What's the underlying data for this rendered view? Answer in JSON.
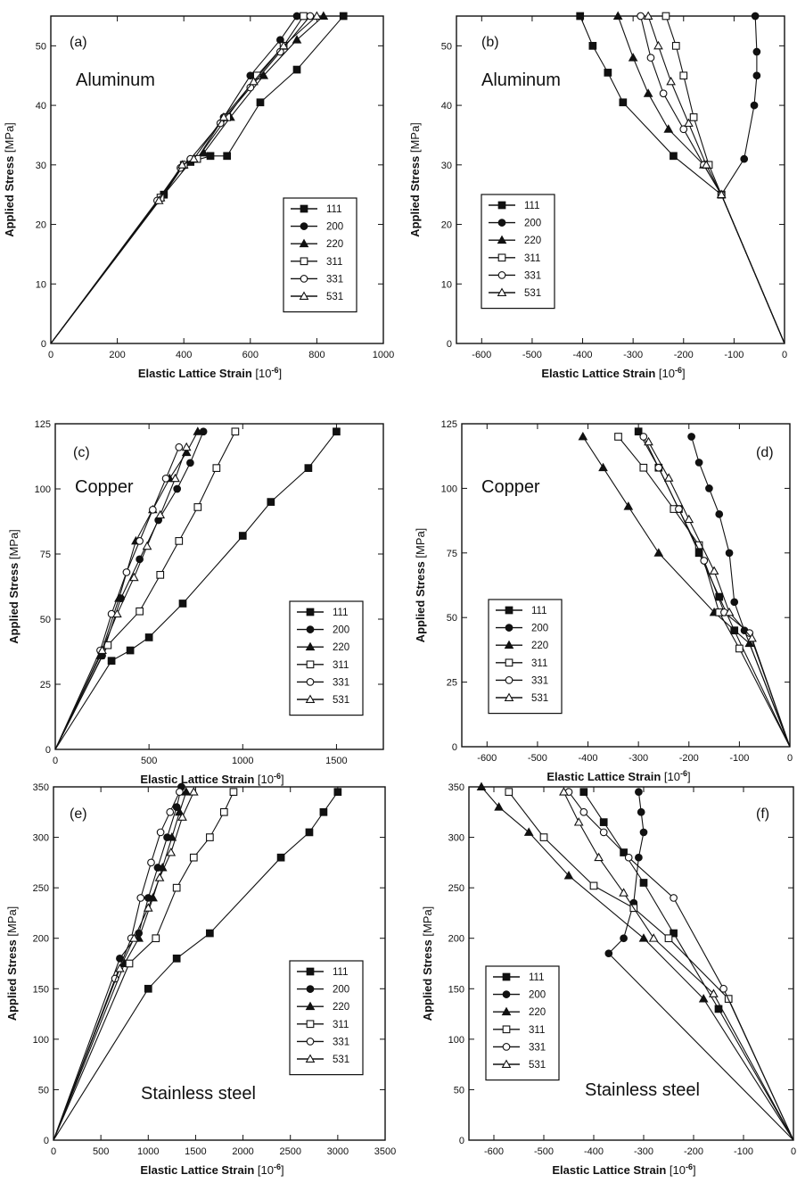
{
  "chart_data": [
    {
      "panel": "(a)",
      "material": "Aluminum",
      "type": "line",
      "xlabel": "Elastic Lattice Strain",
      "xunit": "[10-6]",
      "ylabel": "Applied Stress",
      "yunit": "[MPa]",
      "xlim": [
        0,
        1000
      ],
      "ylim": [
        0,
        55
      ],
      "xticks": [
        0,
        200,
        400,
        600,
        800,
        1000
      ],
      "yticks": [
        0,
        10,
        20,
        30,
        40,
        50
      ],
      "grid": false,
      "legend_position": "lower-right",
      "series": [
        {
          "name": "111",
          "marker": "square-filled",
          "x": [
            0,
            340,
            420,
            480,
            530,
            630,
            740,
            880
          ],
          "y": [
            0,
            25,
            30.5,
            31.5,
            31.5,
            40.5,
            46,
            55
          ]
        },
        {
          "name": "200",
          "marker": "circle-filled",
          "x": [
            0,
            340,
            400,
            440,
            520,
            600,
            690,
            740
          ],
          "y": [
            0,
            25,
            30,
            31,
            38,
            45,
            51,
            55
          ]
        },
        {
          "name": "220",
          "marker": "triangle-filled",
          "x": [
            0,
            330,
            400,
            460,
            540,
            640,
            740,
            820
          ],
          "y": [
            0,
            24.5,
            30,
            32,
            38,
            45,
            51,
            55
          ]
        },
        {
          "name": "311",
          "marker": "square-open",
          "x": [
            0,
            330,
            400,
            440,
            530,
            620,
            700,
            760
          ],
          "y": [
            0,
            24.5,
            30,
            31,
            38,
            45,
            50,
            55
          ]
        },
        {
          "name": "331",
          "marker": "circle-open",
          "x": [
            0,
            320,
            390,
            420,
            510,
            600,
            690,
            780
          ],
          "y": [
            0,
            24,
            29.5,
            31,
            37,
            43,
            49,
            55
          ]
        },
        {
          "name": "531",
          "marker": "triangle-open",
          "x": [
            0,
            325,
            395,
            430,
            520,
            610,
            700,
            800
          ],
          "y": [
            0,
            24,
            30,
            31,
            38,
            44,
            50,
            55
          ]
        }
      ]
    },
    {
      "panel": "(b)",
      "material": "Aluminum",
      "type": "line",
      "xlabel": "Elastic Lattice Strain",
      "xunit": "[10-6]",
      "ylabel": "Applied Stress",
      "yunit": "[MPa]",
      "xlim": [
        -650,
        0
      ],
      "ylim": [
        0,
        55
      ],
      "xticks": [
        -600,
        -500,
        -400,
        -300,
        -200,
        -100,
        0
      ],
      "yticks": [
        0,
        10,
        20,
        30,
        40,
        50
      ],
      "grid": false,
      "legend_position": "lower-left",
      "series": [
        {
          "name": "111",
          "marker": "square-filled",
          "x": [
            0,
            -125,
            -220,
            -320,
            -350,
            -380,
            -405
          ],
          "y": [
            0,
            25,
            31.5,
            40.5,
            45.5,
            50,
            55
          ]
        },
        {
          "name": "200",
          "marker": "circle-filled",
          "x": [
            0,
            -125,
            -80,
            -60,
            -55,
            -55,
            -58
          ],
          "y": [
            0,
            25,
            31,
            40,
            45,
            49,
            55
          ]
        },
        {
          "name": "220",
          "marker": "triangle-filled",
          "x": [
            0,
            -125,
            -160,
            -230,
            -270,
            -300,
            -330
          ],
          "y": [
            0,
            25,
            30,
            36,
            42,
            48,
            55
          ]
        },
        {
          "name": "311",
          "marker": "square-open",
          "x": [
            0,
            -125,
            -150,
            -180,
            -200,
            -215,
            -235
          ],
          "y": [
            0,
            25,
            30,
            38,
            45,
            50,
            55
          ]
        },
        {
          "name": "331",
          "marker": "circle-open",
          "x": [
            0,
            -125,
            -160,
            -200,
            -240,
            -265,
            -285
          ],
          "y": [
            0,
            25,
            30,
            36,
            42,
            48,
            55
          ]
        },
        {
          "name": "531",
          "marker": "triangle-open",
          "x": [
            0,
            -125,
            -155,
            -190,
            -225,
            -250,
            -270
          ],
          "y": [
            0,
            25,
            30,
            37,
            44,
            50,
            55
          ]
        }
      ]
    },
    {
      "panel": "(c)",
      "material": "Copper",
      "type": "line",
      "xlabel": "Elastic Lattice Strain",
      "xunit": "[10-6]",
      "ylabel": "Applied Stress",
      "yunit": "[MPa]",
      "xlim": [
        0,
        1750
      ],
      "ylim": [
        0,
        125
      ],
      "xticks": [
        0,
        500,
        1000,
        1500
      ],
      "yticks": [
        0,
        25,
        50,
        75,
        100,
        125
      ],
      "grid": false,
      "legend_position": "lower-right",
      "series": [
        {
          "name": "111",
          "marker": "square-filled",
          "x": [
            0,
            300,
            400,
            500,
            680,
            1000,
            1150,
            1350,
            1500
          ],
          "y": [
            0,
            34,
            38,
            43,
            56,
            82,
            95,
            108,
            122
          ]
        },
        {
          "name": "200",
          "marker": "circle-filled",
          "x": [
            0,
            250,
            350,
            450,
            550,
            650,
            720,
            790
          ],
          "y": [
            0,
            36,
            58,
            73,
            88,
            100,
            110,
            122
          ]
        },
        {
          "name": "220",
          "marker": "triangle-filled",
          "x": [
            0,
            240,
            340,
            430,
            520,
            610,
            700,
            760
          ],
          "y": [
            0,
            36,
            58,
            80,
            92,
            104,
            114,
            122
          ]
        },
        {
          "name": "311",
          "marker": "square-open",
          "x": [
            0,
            280,
            450,
            560,
            660,
            760,
            860,
            960
          ],
          "y": [
            0,
            40,
            53,
            67,
            80,
            93,
            108,
            122
          ]
        },
        {
          "name": "331",
          "marker": "circle-open",
          "x": [
            0,
            240,
            300,
            380,
            450,
            520,
            590,
            660
          ],
          "y": [
            0,
            38,
            52,
            68,
            80,
            92,
            104,
            116
          ]
        },
        {
          "name": "531",
          "marker": "triangle-open",
          "x": [
            0,
            250,
            330,
            420,
            490,
            560,
            640,
            700
          ],
          "y": [
            0,
            38,
            52,
            66,
            78,
            90,
            104,
            116
          ]
        }
      ]
    },
    {
      "panel": "(d)",
      "material": "Copper",
      "type": "line",
      "xlabel": "Elastic Lattice Strain",
      "xunit": "[10-6]",
      "ylabel": "Applied Stress",
      "yunit": "[MPa]",
      "xlim": [
        -650,
        0
      ],
      "ylim": [
        0,
        125
      ],
      "xticks": [
        -600,
        -500,
        -400,
        -300,
        -200,
        -100,
        0
      ],
      "yticks": [
        0,
        25,
        50,
        75,
        100,
        125
      ],
      "grid": false,
      "legend_position": "lower-left",
      "series": [
        {
          "name": "111",
          "marker": "square-filled",
          "x": [
            0,
            -110,
            -140,
            -180,
            -220,
            -260,
            -300
          ],
          "y": [
            0,
            45,
            58,
            75,
            92,
            108,
            122
          ]
        },
        {
          "name": "200",
          "marker": "circle-filled",
          "x": [
            0,
            -90,
            -110,
            -120,
            -140,
            -160,
            -180,
            -195
          ],
          "y": [
            0,
            45,
            56,
            75,
            90,
            100,
            110,
            120
          ]
        },
        {
          "name": "220",
          "marker": "triangle-filled",
          "x": [
            0,
            -80,
            -150,
            -260,
            -320,
            -370,
            -410
          ],
          "y": [
            0,
            40,
            52,
            75,
            93,
            108,
            120
          ]
        },
        {
          "name": "311",
          "marker": "square-open",
          "x": [
            0,
            -100,
            -140,
            -180,
            -230,
            -290,
            -340
          ],
          "y": [
            0,
            38,
            52,
            78,
            92,
            108,
            120
          ]
        },
        {
          "name": "331",
          "marker": "circle-open",
          "x": [
            0,
            -80,
            -130,
            -170,
            -220,
            -260,
            -290
          ],
          "y": [
            0,
            44,
            52,
            72,
            92,
            108,
            120
          ]
        },
        {
          "name": "531",
          "marker": "triangle-open",
          "x": [
            0,
            -75,
            -120,
            -150,
            -200,
            -240,
            -280
          ],
          "y": [
            0,
            42,
            52,
            68,
            88,
            104,
            118
          ]
        }
      ]
    },
    {
      "panel": "(e)",
      "material": "Stainless steel",
      "type": "line",
      "xlabel": "Elastic Lattice Strain",
      "xunit": "[10-6]",
      "ylabel": "Applied Stress",
      "yunit": "[MPa]",
      "xlim": [
        0,
        3500
      ],
      "ylim": [
        0,
        350
      ],
      "xticks": [
        0,
        500,
        1000,
        1500,
        2000,
        2500,
        3000,
        3500
      ],
      "yticks": [
        0,
        50,
        100,
        150,
        200,
        250,
        300,
        350
      ],
      "grid": false,
      "legend_position": "lower-right",
      "series": [
        {
          "name": "111",
          "marker": "square-filled",
          "x": [
            0,
            1000,
            1300,
            1650,
            2400,
            2700,
            2850,
            3000
          ],
          "y": [
            0,
            150,
            180,
            205,
            280,
            305,
            325,
            345
          ]
        },
        {
          "name": "200",
          "marker": "circle-filled",
          "x": [
            0,
            700,
            900,
            1000,
            1100,
            1200,
            1300,
            1350
          ],
          "y": [
            0,
            180,
            205,
            240,
            270,
            300,
            330,
            350
          ]
        },
        {
          "name": "220",
          "marker": "triangle-filled",
          "x": [
            0,
            750,
            900,
            1050,
            1150,
            1250,
            1330,
            1400
          ],
          "y": [
            0,
            175,
            200,
            240,
            270,
            300,
            325,
            345
          ]
        },
        {
          "name": "311",
          "marker": "square-open",
          "x": [
            0,
            800,
            1080,
            1300,
            1480,
            1650,
            1800,
            1900
          ],
          "y": [
            0,
            175,
            200,
            250,
            280,
            300,
            325,
            345
          ]
        },
        {
          "name": "331",
          "marker": "circle-open",
          "x": [
            0,
            650,
            820,
            920,
            1030,
            1130,
            1230,
            1330
          ],
          "y": [
            0,
            160,
            200,
            240,
            275,
            305,
            325,
            345
          ]
        },
        {
          "name": "531",
          "marker": "triangle-open",
          "x": [
            0,
            700,
            850,
            1000,
            1120,
            1240,
            1360,
            1480
          ],
          "y": [
            0,
            170,
            200,
            230,
            260,
            285,
            320,
            345
          ]
        }
      ],
      "annotations": []
    },
    {
      "panel": "(f)",
      "material": "Stainless steel",
      "type": "line",
      "xlabel": "Elastic Lattice Strain",
      "xunit": "[10-6]",
      "ylabel": "Applied Stress",
      "yunit": "[MPa]",
      "xlim": [
        -650,
        0
      ],
      "ylim": [
        0,
        350
      ],
      "xticks": [
        -600,
        -500,
        -400,
        -300,
        -200,
        -100,
        0
      ],
      "yticks": [
        0,
        50,
        100,
        150,
        200,
        250,
        300,
        350
      ],
      "grid": false,
      "legend_position": "lower-left",
      "series": [
        {
          "name": "111",
          "marker": "square-filled",
          "x": [
            0,
            -150,
            -240,
            -300,
            -340,
            -380,
            -420
          ],
          "y": [
            0,
            130,
            205,
            255,
            285,
            315,
            345
          ]
        },
        {
          "name": "200",
          "marker": "circle-filled",
          "x": [
            0,
            -370,
            -340,
            -320,
            -310,
            -300,
            -305,
            -310
          ],
          "y": [
            0,
            185,
            200,
            235,
            280,
            305,
            325,
            345
          ]
        },
        {
          "name": "220",
          "marker": "triangle-filled",
          "x": [
            0,
            -180,
            -300,
            -450,
            -530,
            -590,
            -625
          ],
          "y": [
            0,
            140,
            200,
            262,
            305,
            330,
            350
          ]
        },
        {
          "name": "311",
          "marker": "square-open",
          "x": [
            0,
            -130,
            -250,
            -320,
            -400,
            -500,
            -570
          ],
          "y": [
            0,
            140,
            200,
            230,
            252,
            300,
            345
          ]
        },
        {
          "name": "331",
          "marker": "circle-open",
          "x": [
            0,
            -140,
            -240,
            -330,
            -380,
            -420,
            -450
          ],
          "y": [
            0,
            150,
            240,
            280,
            305,
            325,
            345
          ]
        },
        {
          "name": "531",
          "marker": "triangle-open",
          "x": [
            0,
            -160,
            -280,
            -340,
            -390,
            -430,
            -460
          ],
          "y": [
            0,
            145,
            200,
            245,
            280,
            315,
            345
          ]
        }
      ]
    }
  ]
}
